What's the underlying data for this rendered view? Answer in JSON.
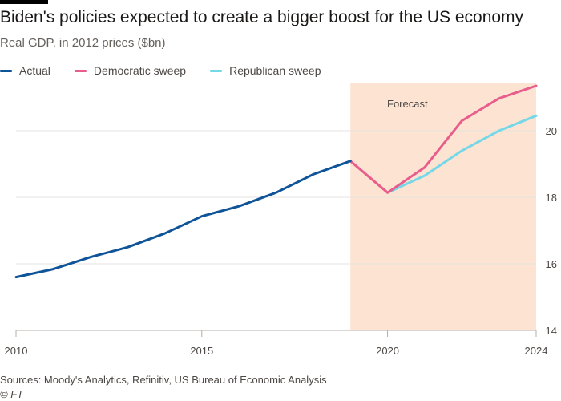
{
  "header": {
    "title": "Biden's policies expected to create a bigger boost for the US economy",
    "subtitle": "Real GDP, in 2012 prices ($bn)"
  },
  "legend": [
    {
      "label": "Actual",
      "color": "#0f5499"
    },
    {
      "label": "Democratic sweep",
      "color": "#e95d8c"
    },
    {
      "label": "Republican sweep",
      "color": "#75d8e8"
    }
  ],
  "footer": {
    "source": "Sources: Moody's Analytics, Refinitiv, US Bureau of Economic Analysis",
    "copyright": "© FT"
  },
  "chart_data": {
    "type": "line",
    "xlim": [
      2010,
      2024
    ],
    "ylim": [
      14,
      21.5
    ],
    "y_ticks": [
      14,
      16,
      18,
      20
    ],
    "y_tick_labels": [
      "14",
      "16",
      "18",
      "20"
    ],
    "x_ticks": [
      2010,
      2015,
      2020,
      2024
    ],
    "x_tick_labels": [
      "2010",
      "2015",
      "2020",
      "2024"
    ],
    "grid": true,
    "y_axis_side": "right",
    "legend_position": "top-left",
    "forecast_band": {
      "x_start": 2019,
      "x_end": 2024,
      "label": "Forecast",
      "color": "#fde3d2"
    },
    "series": [
      {
        "name": "Actual",
        "color": "#0f5499",
        "x": [
          2010,
          2011,
          2012,
          2013,
          2014,
          2015,
          2016,
          2017,
          2018,
          2019
        ],
        "values": [
          15.6,
          15.84,
          16.2,
          16.5,
          16.91,
          17.43,
          17.73,
          18.14,
          18.69,
          19.09
        ]
      },
      {
        "name": "Democratic sweep",
        "color": "#e95d8c",
        "x": [
          2019,
          2020,
          2021,
          2022,
          2023,
          2024
        ],
        "values": [
          19.09,
          18.14,
          18.9,
          20.3,
          20.97,
          21.35
        ]
      },
      {
        "name": "Republican sweep",
        "color": "#75d8e8",
        "x": [
          2020,
          2021,
          2022,
          2023,
          2024
        ],
        "values": [
          18.14,
          18.65,
          19.4,
          20.0,
          20.45
        ]
      }
    ]
  }
}
